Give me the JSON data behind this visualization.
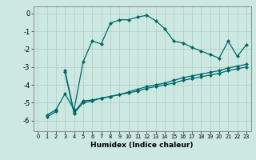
{
  "title": "",
  "xlabel": "Humidex (Indice chaleur)",
  "bg_color": "#cce8e0",
  "grid_color": "#aacec8",
  "line_color": "#006868",
  "marker": "D",
  "markersize": 2.0,
  "linewidth": 0.9,
  "xlim": [
    -0.5,
    23.5
  ],
  "ylim": [
    -6.6,
    0.4
  ],
  "yticks": [
    0,
    -1,
    -2,
    -3,
    -4,
    -5,
    -6
  ],
  "xticks": [
    0,
    1,
    2,
    3,
    4,
    5,
    6,
    7,
    8,
    9,
    10,
    11,
    12,
    13,
    14,
    15,
    16,
    17,
    18,
    19,
    20,
    21,
    22,
    23
  ],
  "series": [
    [
      null,
      -5.7,
      -5.4,
      -4.5,
      -5.4,
      -2.7,
      -1.55,
      -1.7,
      -0.55,
      -0.35,
      -0.35,
      -0.2,
      -0.1,
      -0.4,
      -0.85,
      -1.55,
      -1.65,
      -1.9,
      -2.1,
      -2.3,
      -2.5,
      -1.55,
      -2.4,
      -1.75
    ],
    [
      null,
      null,
      null,
      -3.2,
      -5.55,
      -4.9,
      -4.85,
      -4.75,
      -4.65,
      -4.55,
      -4.45,
      -4.35,
      -4.2,
      -4.1,
      -4.0,
      -3.9,
      -3.75,
      -3.65,
      -3.55,
      -3.45,
      -3.35,
      -3.2,
      -3.1,
      -3.0
    ],
    [
      null,
      null,
      null,
      -3.3,
      -5.6,
      -5.0,
      -4.9,
      -4.75,
      -4.65,
      -4.55,
      -4.4,
      -4.25,
      -4.1,
      -4.0,
      -3.9,
      -3.75,
      -3.6,
      -3.5,
      -3.4,
      -3.3,
      -3.2,
      -3.05,
      -2.95,
      -2.85
    ],
    [
      null,
      -5.8,
      -5.5,
      null,
      null,
      null,
      null,
      null,
      null,
      null,
      null,
      null,
      null,
      null,
      null,
      null,
      null,
      null,
      null,
      null,
      null,
      null,
      null,
      null
    ]
  ]
}
